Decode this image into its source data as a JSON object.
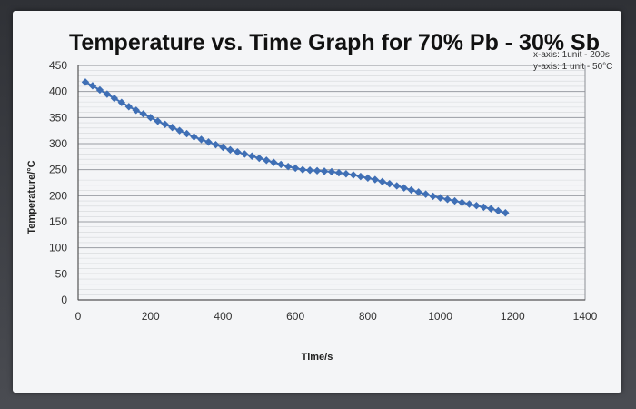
{
  "chart_data": {
    "type": "line",
    "title": "Temperature vs. Time Graph for 70% Pb - 30% Sb",
    "xlabel": "Time/s",
    "ylabel": "Temperature/°C",
    "notes": [
      "x-axis: 1unit - 200s",
      "y-axis: 1 unit - 50°C"
    ],
    "xlim": [
      0,
      1400
    ],
    "ylim": [
      0,
      450
    ],
    "x_ticks": [
      "0",
      "200",
      "400",
      "600",
      "800",
      "1000",
      "1200",
      "1400"
    ],
    "y_ticks": [
      "0",
      "50",
      "100",
      "150",
      "200",
      "250",
      "300",
      "350",
      "400",
      "450"
    ],
    "grid": true,
    "series_color": "#3f6fb5",
    "marker": "diamond",
    "series": [
      {
        "x": [
          20,
          40,
          60,
          80,
          100,
          120,
          140,
          160,
          180,
          200,
          220,
          240,
          260,
          280,
          300,
          320,
          340,
          360,
          380,
          400,
          420,
          440,
          460,
          480,
          500,
          520,
          540,
          560,
          580,
          600,
          620,
          640,
          660,
          680,
          700,
          720,
          740,
          760,
          780,
          800,
          820,
          840,
          860,
          880,
          900,
          920,
          940,
          960,
          980,
          1000,
          1020,
          1040,
          1060,
          1080,
          1100,
          1120,
          1140,
          1160,
          1180
        ],
        "y": [
          418,
          411,
          403,
          395,
          387,
          379,
          371,
          364,
          357,
          350,
          343,
          337,
          331,
          325,
          319,
          313,
          308,
          303,
          298,
          293,
          288,
          284,
          280,
          276,
          272,
          268,
          264,
          260,
          256,
          253,
          250,
          249,
          248,
          247,
          246,
          244,
          242,
          240,
          237,
          234,
          231,
          227,
          223,
          219,
          215,
          211,
          207,
          203,
          199,
          196,
          193,
          190,
          187,
          184,
          181,
          178,
          175,
          171,
          167
        ]
      }
    ]
  }
}
